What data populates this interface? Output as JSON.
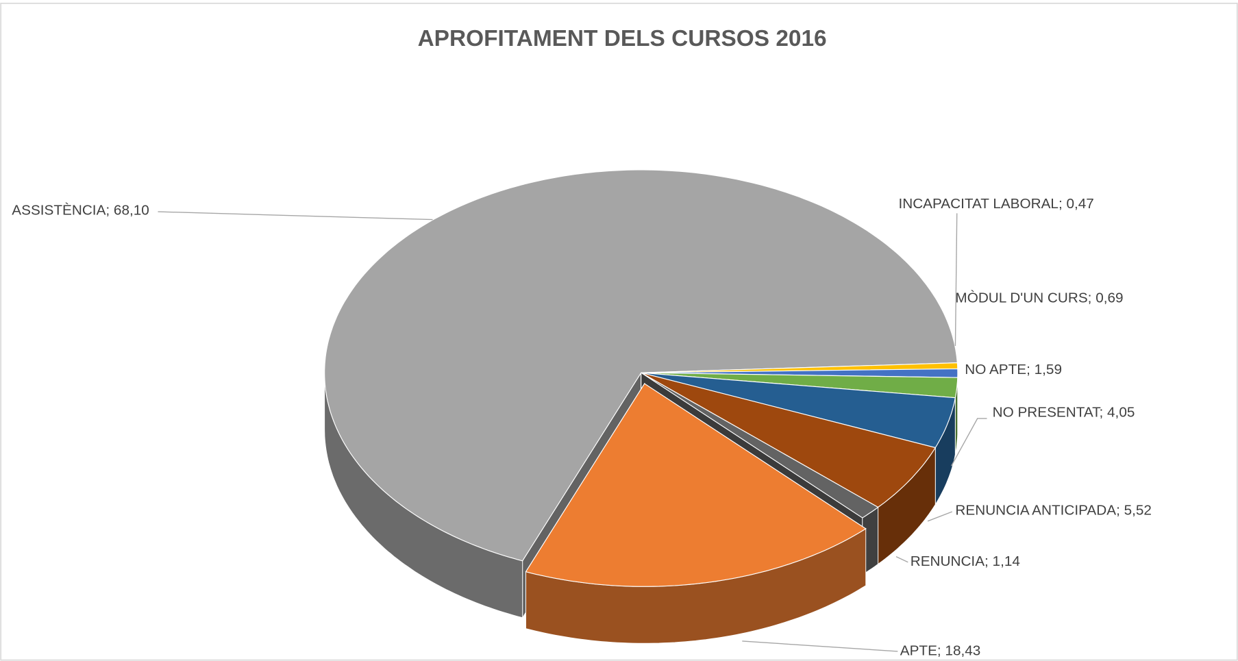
{
  "chart_data": {
    "type": "pie",
    "title": "APROFITAMENT DELS CURSOS 2016",
    "values": [
      68.1,
      0.47,
      0.69,
      1.59,
      4.05,
      5.52,
      1.14,
      18.43
    ],
    "value_labels": [
      "ASSISTÈNCIA; 68,10",
      "INCAPACITAT LABORAL; 0,47",
      "MÒDUL D'UN CURS; 0,69",
      "NO APTE; 1,59",
      "NO PRESENTAT; 4,05",
      "RENUNCIA ANTICIPADA; 5,52",
      "RENUNCIA; 1,14",
      "APTE; 18,43"
    ],
    "colors": [
      "#a5a5a5",
      "#ffc000",
      "#4472c4",
      "#70ad47",
      "#255e91",
      "#9e480e",
      "#636363",
      "#ed7d31"
    ]
  }
}
